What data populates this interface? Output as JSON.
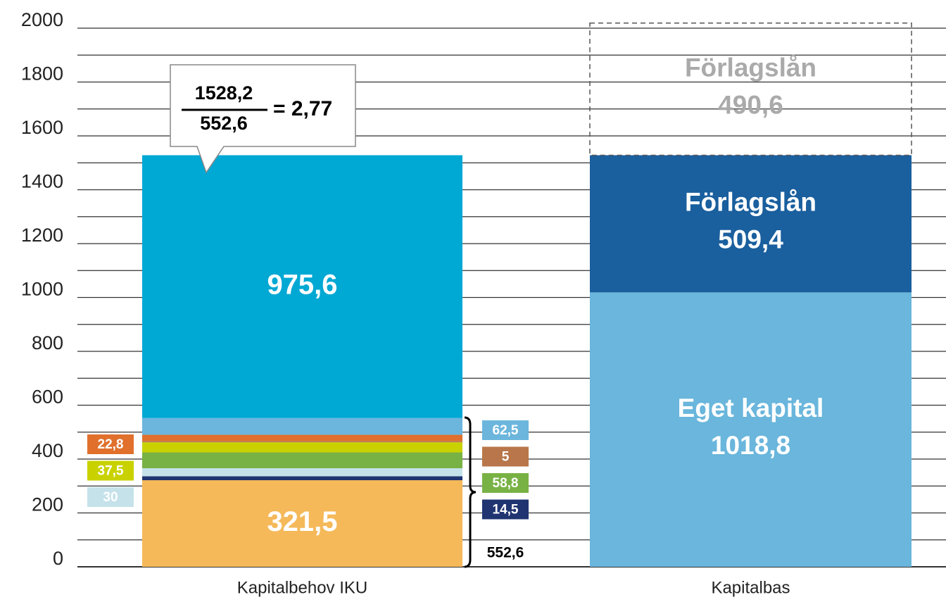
{
  "chart_data": {
    "type": "stacked_bar",
    "categories": [
      "Kapitalbehov IKU",
      "Kapitalbas"
    ],
    "ylim": [
      0,
      2000
    ],
    "yticks": [
      0,
      200,
      400,
      600,
      800,
      1000,
      1200,
      1400,
      1600,
      1800,
      2000
    ],
    "yminor": [
      100,
      300,
      500,
      700,
      900,
      1100,
      1300,
      1500,
      1700,
      1900
    ],
    "grid": true,
    "series": [
      {
        "color": "#f5b95a",
        "values": [
          321.5,
          null
        ],
        "value_labels": [
          "321,5",
          null
        ]
      },
      {
        "color": "#1f3470",
        "values": [
          14.5,
          null
        ],
        "value_labels": [
          "14,5",
          null
        ]
      },
      {
        "color": "#c5e2ea",
        "values": [
          30,
          null
        ],
        "value_labels": [
          "30",
          null
        ]
      },
      {
        "color": "#78b244",
        "values": [
          58.8,
          null
        ],
        "value_labels": [
          "58,8",
          null
        ]
      },
      {
        "color": "#c9d200",
        "values": [
          37.5,
          null
        ],
        "value_labels": [
          "37,5",
          null
        ]
      },
      {
        "color": "#b8764a",
        "values": [
          5,
          null
        ],
        "value_labels": [
          "5",
          null
        ]
      },
      {
        "color": "#e0702c",
        "values": [
          22.8,
          null
        ],
        "value_labels": [
          "22,8",
          null
        ]
      },
      {
        "color": "#6cb6dd",
        "values": [
          62.5,
          null
        ],
        "value_labels": [
          "62,5",
          null
        ]
      },
      {
        "color": "#00a8d4",
        "values": [
          975.6,
          null
        ],
        "value_labels": [
          "975,6",
          null
        ]
      },
      {
        "name": "Eget kapital",
        "color": "#6ab6dc",
        "values": [
          null,
          1018.8
        ],
        "value_labels": [
          null,
          "1018,8"
        ]
      },
      {
        "name": "Förlagslån",
        "color": "#1a5f9e",
        "values": [
          null,
          509.4
        ],
        "value_labels": [
          null,
          "509,4"
        ]
      },
      {
        "name": "Förlagslån",
        "color": "#aaaaaa",
        "style": "dashed",
        "values": [
          null,
          490.6
        ],
        "value_labels": [
          null,
          "490,6"
        ]
      }
    ],
    "annotations": {
      "numerator": "1528,2",
      "denominator": "552,6",
      "result": "= 2,77",
      "brace_total": "552,6"
    }
  }
}
